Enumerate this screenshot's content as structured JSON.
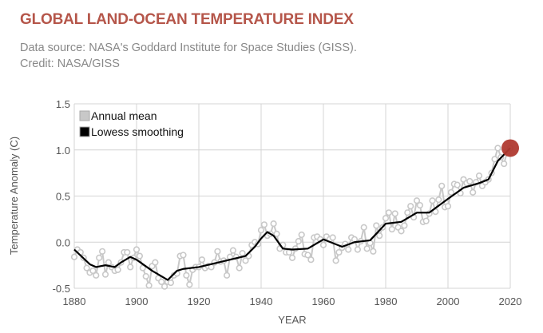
{
  "header": {
    "title": "GLOBAL LAND-OCEAN TEMPERATURE INDEX",
    "source": "Data source: NASA's Goddard Institute for Space Studies (GISS).",
    "credit": "Credit: NASA/GISS"
  },
  "chart_data": {
    "type": "line",
    "title": "GLOBAL LAND-OCEAN TEMPERATURE INDEX",
    "xlabel": "YEAR",
    "ylabel": "Temperature Anomaly (C)",
    "xlim": [
      1880,
      2020
    ],
    "ylim": [
      -0.5,
      1.5
    ],
    "xticks": [
      "1880",
      "1900",
      "1920",
      "1940",
      "1960",
      "1980",
      "2000",
      "2020"
    ],
    "yticks": [
      "-0.5",
      "0.0",
      "0.5",
      "1.0",
      "1.5"
    ],
    "grid": true,
    "legend_position": "top-left",
    "colors": {
      "annual": "#c8c8c8",
      "lowess": "#000000",
      "highlight": "#b03a30"
    },
    "highlight_point": {
      "x": 2020,
      "y": 1.02
    },
    "series": [
      {
        "name": "Annual mean",
        "x_start": 1880,
        "values": [
          -0.16,
          -0.08,
          -0.11,
          -0.17,
          -0.28,
          -0.33,
          -0.31,
          -0.36,
          -0.17,
          -0.1,
          -0.35,
          -0.22,
          -0.27,
          -0.31,
          -0.3,
          -0.22,
          -0.11,
          -0.11,
          -0.27,
          -0.17,
          -0.08,
          -0.15,
          -0.28,
          -0.37,
          -0.47,
          -0.26,
          -0.22,
          -0.39,
          -0.43,
          -0.48,
          -0.43,
          -0.44,
          -0.36,
          -0.34,
          -0.15,
          -0.14,
          -0.36,
          -0.46,
          -0.3,
          -0.27,
          -0.27,
          -0.19,
          -0.28,
          -0.26,
          -0.27,
          -0.22,
          -0.1,
          -0.21,
          -0.2,
          -0.36,
          -0.16,
          -0.09,
          -0.16,
          -0.28,
          -0.12,
          -0.2,
          -0.15,
          -0.03,
          0.0,
          -0.02,
          0.13,
          0.19,
          0.07,
          0.09,
          0.2,
          0.09,
          -0.07,
          -0.03,
          -0.11,
          -0.11,
          -0.17,
          -0.07,
          0.01,
          0.08,
          -0.13,
          -0.14,
          -0.19,
          0.05,
          0.06,
          0.03,
          -0.03,
          0.06,
          0.03,
          0.05,
          -0.2,
          -0.11,
          -0.06,
          -0.02,
          -0.08,
          0.05,
          0.03,
          -0.08,
          0.01,
          0.16,
          -0.07,
          -0.01,
          -0.1,
          0.18,
          0.07,
          0.16,
          0.26,
          0.32,
          0.14,
          0.31,
          0.16,
          0.12,
          0.18,
          0.32,
          0.39,
          0.27,
          0.45,
          0.4,
          0.22,
          0.23,
          0.31,
          0.45,
          0.33,
          0.46,
          0.61,
          0.38,
          0.39,
          0.54,
          0.63,
          0.62,
          0.53,
          0.68,
          0.64,
          0.66,
          0.54,
          0.65,
          0.72,
          0.61,
          0.65,
          0.68,
          0.75,
          0.9,
          1.02,
          0.92,
          0.85,
          0.98,
          1.02
        ]
      },
      {
        "name": "Lowess smoothing",
        "x": [
          1880,
          1885,
          1887,
          1890,
          1893,
          1895,
          1898,
          1900,
          1905,
          1910,
          1913,
          1915,
          1920,
          1925,
          1930,
          1935,
          1938,
          1940,
          1942,
          1944,
          1947,
          1950,
          1955,
          1960,
          1966,
          1970,
          1975,
          1980,
          1985,
          1990,
          1994,
          2000,
          2005,
          2010,
          2013,
          2016,
          2020
        ],
        "values": [
          -0.08,
          -0.24,
          -0.27,
          -0.25,
          -0.27,
          -0.22,
          -0.16,
          -0.19,
          -0.31,
          -0.41,
          -0.31,
          -0.29,
          -0.27,
          -0.23,
          -0.19,
          -0.15,
          -0.05,
          0.04,
          0.11,
          0.07,
          -0.07,
          -0.08,
          -0.07,
          0.03,
          -0.05,
          0.0,
          0.02,
          0.2,
          0.22,
          0.32,
          0.32,
          0.47,
          0.59,
          0.64,
          0.68,
          0.88,
          1.02
        ]
      }
    ]
  }
}
